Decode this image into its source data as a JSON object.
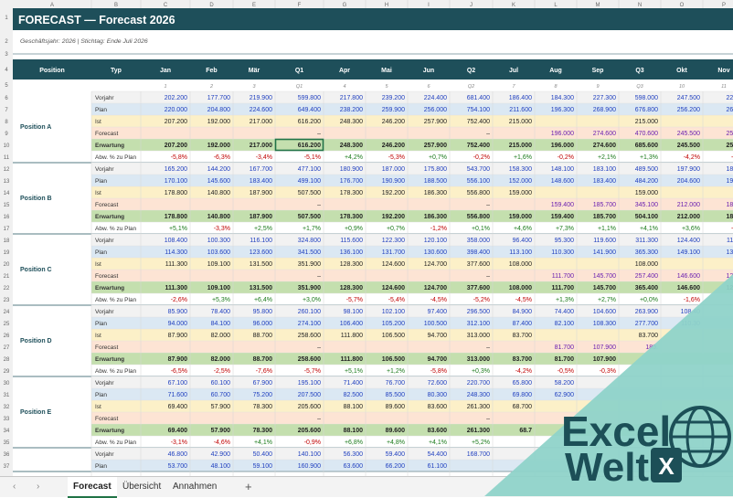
{
  "columns": [
    "A",
    "B",
    "C",
    "D",
    "E",
    "F",
    "G",
    "H",
    "I",
    "J",
    "K",
    "L",
    "M",
    "N",
    "O",
    "P"
  ],
  "title": "FORECAST — Forecast 2026",
  "subtitle": "Geschäftsjahr: 2026   |   Stichtag: Ende Juli 2026",
  "header": [
    "Position",
    "Typ",
    "Jan",
    "Feb",
    "Mär",
    "Q1",
    "Apr",
    "Mai",
    "Jun",
    "Q2",
    "Jul",
    "Aug",
    "Sep",
    "Q3",
    "Okt",
    "Nov"
  ],
  "subheader": [
    "",
    "",
    "1",
    "2",
    "3",
    "Q1",
    "4",
    "5",
    "6",
    "Q2",
    "7",
    "8",
    "9",
    "Q3",
    "10",
    "11"
  ],
  "row_types": [
    "Vorjahr",
    "Plan",
    "Ist",
    "Forecast",
    "Erwartung",
    "Abw. % zu Plan"
  ],
  "positions": [
    {
      "name": "Position A",
      "rows": [
        [
          "202.200",
          "177.700",
          "219.900",
          "599.800",
          "217.800",
          "239.200",
          "224.400",
          "681.400",
          "186.400",
          "184.300",
          "227.300",
          "598.000",
          "247.500",
          "228.1"
        ],
        [
          "220.000",
          "204.800",
          "224.600",
          "649.400",
          "238.200",
          "259.900",
          "256.000",
          "754.100",
          "211.600",
          "196.300",
          "268.900",
          "676.800",
          "256.200",
          "265.9"
        ],
        [
          "207.200",
          "192.000",
          "217.000",
          "616.200",
          "248.300",
          "246.200",
          "257.900",
          "752.400",
          "215.000",
          "",
          "",
          "215.000",
          "",
          ""
        ],
        [
          "",
          "",
          "",
          "–",
          "",
          "",
          "",
          "–",
          "",
          "196.000",
          "274.600",
          "470.600",
          "245.500",
          "254.7"
        ],
        [
          "207.200",
          "192.000",
          "217.000",
          "616.200",
          "248.300",
          "246.200",
          "257.900",
          "752.400",
          "215.000",
          "196.000",
          "274.600",
          "685.600",
          "245.500",
          "254.7"
        ],
        [
          "-5,8%",
          "-6,3%",
          "-3,4%",
          "-5,1%",
          "+4,2%",
          "-5,3%",
          "+0,7%",
          "-0,2%",
          "+1,6%",
          "-0,2%",
          "+2,1%",
          "+1,3%",
          "-4,2%",
          "-4,2"
        ]
      ]
    },
    {
      "name": "Position B",
      "rows": [
        [
          "165.200",
          "144.200",
          "167.700",
          "477.100",
          "180.900",
          "187.000",
          "175.800",
          "543.700",
          "158.300",
          "148.100",
          "183.100",
          "489.500",
          "197.900",
          "188.4"
        ],
        [
          "170.100",
          "145.600",
          "183.400",
          "499.100",
          "176.700",
          "190.900",
          "188.500",
          "556.100",
          "152.000",
          "148.600",
          "183.400",
          "484.200",
          "204.600",
          "197.6"
        ],
        [
          "178.800",
          "140.800",
          "187.900",
          "507.500",
          "178.300",
          "192.200",
          "186.300",
          "556.800",
          "159.000",
          "",
          "",
          "159.000",
          "",
          ""
        ],
        [
          "",
          "",
          "",
          "–",
          "",
          "",
          "",
          "–",
          "",
          "159.400",
          "185.700",
          "345.100",
          "212.000",
          "189.3"
        ],
        [
          "178.800",
          "140.800",
          "187.900",
          "507.500",
          "178.300",
          "192.200",
          "186.300",
          "556.800",
          "159.000",
          "159.400",
          "185.700",
          "504.100",
          "212.000",
          "189.3"
        ],
        [
          "+5,1%",
          "-3,3%",
          "+2,5%",
          "+1,7%",
          "+0,9%",
          "+0,7%",
          "-1,2%",
          "+0,1%",
          "+4,6%",
          "+7,3%",
          "+1,1%",
          "+4,1%",
          "+3,6%",
          "-4,2"
        ]
      ]
    },
    {
      "name": "Position C",
      "rows": [
        [
          "108.400",
          "100.300",
          "116.100",
          "324.800",
          "115.600",
          "122.300",
          "120.100",
          "358.000",
          "96.400",
          "95.300",
          "119.600",
          "311.300",
          "124.400",
          "118.4"
        ],
        [
          "114.300",
          "103.600",
          "123.600",
          "341.500",
          "136.100",
          "131.700",
          "130.600",
          "398.400",
          "113.100",
          "110.300",
          "141.900",
          "365.300",
          "149.100",
          "134.5"
        ],
        [
          "111.300",
          "109.100",
          "131.500",
          "351.900",
          "128.300",
          "124.600",
          "124.700",
          "377.600",
          "108.000",
          "",
          "",
          "108.000",
          "",
          ""
        ],
        [
          "",
          "",
          "",
          "–",
          "",
          "",
          "",
          "–",
          "",
          "111.700",
          "145.700",
          "257.400",
          "146.600",
          "127.8"
        ],
        [
          "111.300",
          "109.100",
          "131.500",
          "351.900",
          "128.300",
          "124.600",
          "124.700",
          "377.600",
          "108.000",
          "111.700",
          "145.700",
          "365.400",
          "146.600",
          "127.8"
        ],
        [
          "-2,6%",
          "+5,3%",
          "+6,4%",
          "+3,0%",
          "-5,7%",
          "-5,4%",
          "-4,5%",
          "-5,2%",
          "-4,5%",
          "+1,3%",
          "+2,7%",
          "+0,0%",
          "-1,6%",
          "-"
        ]
      ]
    },
    {
      "name": "Position D",
      "rows": [
        [
          "85.900",
          "78.400",
          "95.800",
          "260.100",
          "98.100",
          "102.100",
          "97.400",
          "296.500",
          "84.900",
          "74.400",
          "104.600",
          "263.900",
          "108.40",
          ""
        ],
        [
          "94.000",
          "84.100",
          "96.000",
          "274.100",
          "106.400",
          "105.200",
          "100.500",
          "312.100",
          "87.400",
          "82.100",
          "108.300",
          "277.700",
          "110.30",
          ""
        ],
        [
          "87.900",
          "82.000",
          "88.700",
          "258.600",
          "111.800",
          "106.500",
          "94.700",
          "313.000",
          "83.700",
          "",
          "",
          "83.700",
          "",
          ""
        ],
        [
          "",
          "",
          "",
          "–",
          "",
          "",
          "",
          "–",
          "",
          "81.700",
          "107.900",
          "189.",
          "",
          ""
        ],
        [
          "87.900",
          "82.000",
          "88.700",
          "258.600",
          "111.800",
          "106.500",
          "94.700",
          "313.000",
          "83.700",
          "81.700",
          "107.900",
          "",
          "",
          ""
        ],
        [
          "-6,5%",
          "-2,5%",
          "-7,6%",
          "-5,7%",
          "+5,1%",
          "+1,2%",
          "-5,8%",
          "+0,3%",
          "-4,2%",
          "-0,5%",
          "-0,3%",
          "",
          "",
          ""
        ]
      ]
    },
    {
      "name": "Position E",
      "rows": [
        [
          "67.100",
          "60.100",
          "67.900",
          "195.100",
          "71.400",
          "76.700",
          "72.600",
          "220.700",
          "65.800",
          "58.200",
          "",
          "",
          "",
          ""
        ],
        [
          "71.600",
          "60.700",
          "75.200",
          "207.500",
          "82.500",
          "85.500",
          "80.300",
          "248.300",
          "69.800",
          "62.900",
          "",
          "",
          "",
          ""
        ],
        [
          "69.400",
          "57.900",
          "78.300",
          "205.600",
          "88.100",
          "89.600",
          "83.600",
          "261.300",
          "68.700",
          "",
          "",
          "",
          "",
          ""
        ],
        [
          "",
          "",
          "",
          "–",
          "",
          "",
          "",
          "–",
          "",
          "",
          "",
          "",
          "",
          ""
        ],
        [
          "69.400",
          "57.900",
          "78.300",
          "205.600",
          "88.100",
          "89.600",
          "83.600",
          "261.300",
          "68.7",
          "",
          "",
          "",
          "",
          ""
        ],
        [
          "-3,1%",
          "-4,6%",
          "+4,1%",
          "-0,9%",
          "+6,8%",
          "+4,8%",
          "+4,1%",
          "+5,2%",
          "",
          "",
          "",
          "",
          "",
          ""
        ]
      ]
    },
    {
      "name": "",
      "rows": [
        [
          "46.800",
          "42.900",
          "50.400",
          "140.100",
          "56.300",
          "59.400",
          "54.400",
          "168.700",
          "",
          "",
          "",
          "",
          "",
          ""
        ],
        [
          "53.700",
          "48.100",
          "59.100",
          "160.900",
          "63.600",
          "66.200",
          "61.100",
          "",
          "",
          "",
          "",
          "",
          "",
          ""
        ]
      ]
    }
  ],
  "tabs": [
    "Forecast",
    "Übersicht",
    "Annahmen"
  ],
  "add_sheet": "+",
  "logo": {
    "line1": "Excel",
    "line2": "Welt",
    "badge": "X"
  },
  "colors": {
    "title_bg": "#1e4f5a",
    "band_vorjahr": "#f2f2f2",
    "band_plan": "#dbe8f3",
    "band_ist": "#fcf0c8",
    "band_forecast": "#fde4d4",
    "band_erwartung": "#c4dfae",
    "blue_text": "#1f3fbf",
    "purple_text": "#6a1fb0",
    "neg": "#c00000",
    "pos": "#1a7a1a",
    "teal": "#8fd3c9",
    "logo_dark": "#1c4f57"
  }
}
